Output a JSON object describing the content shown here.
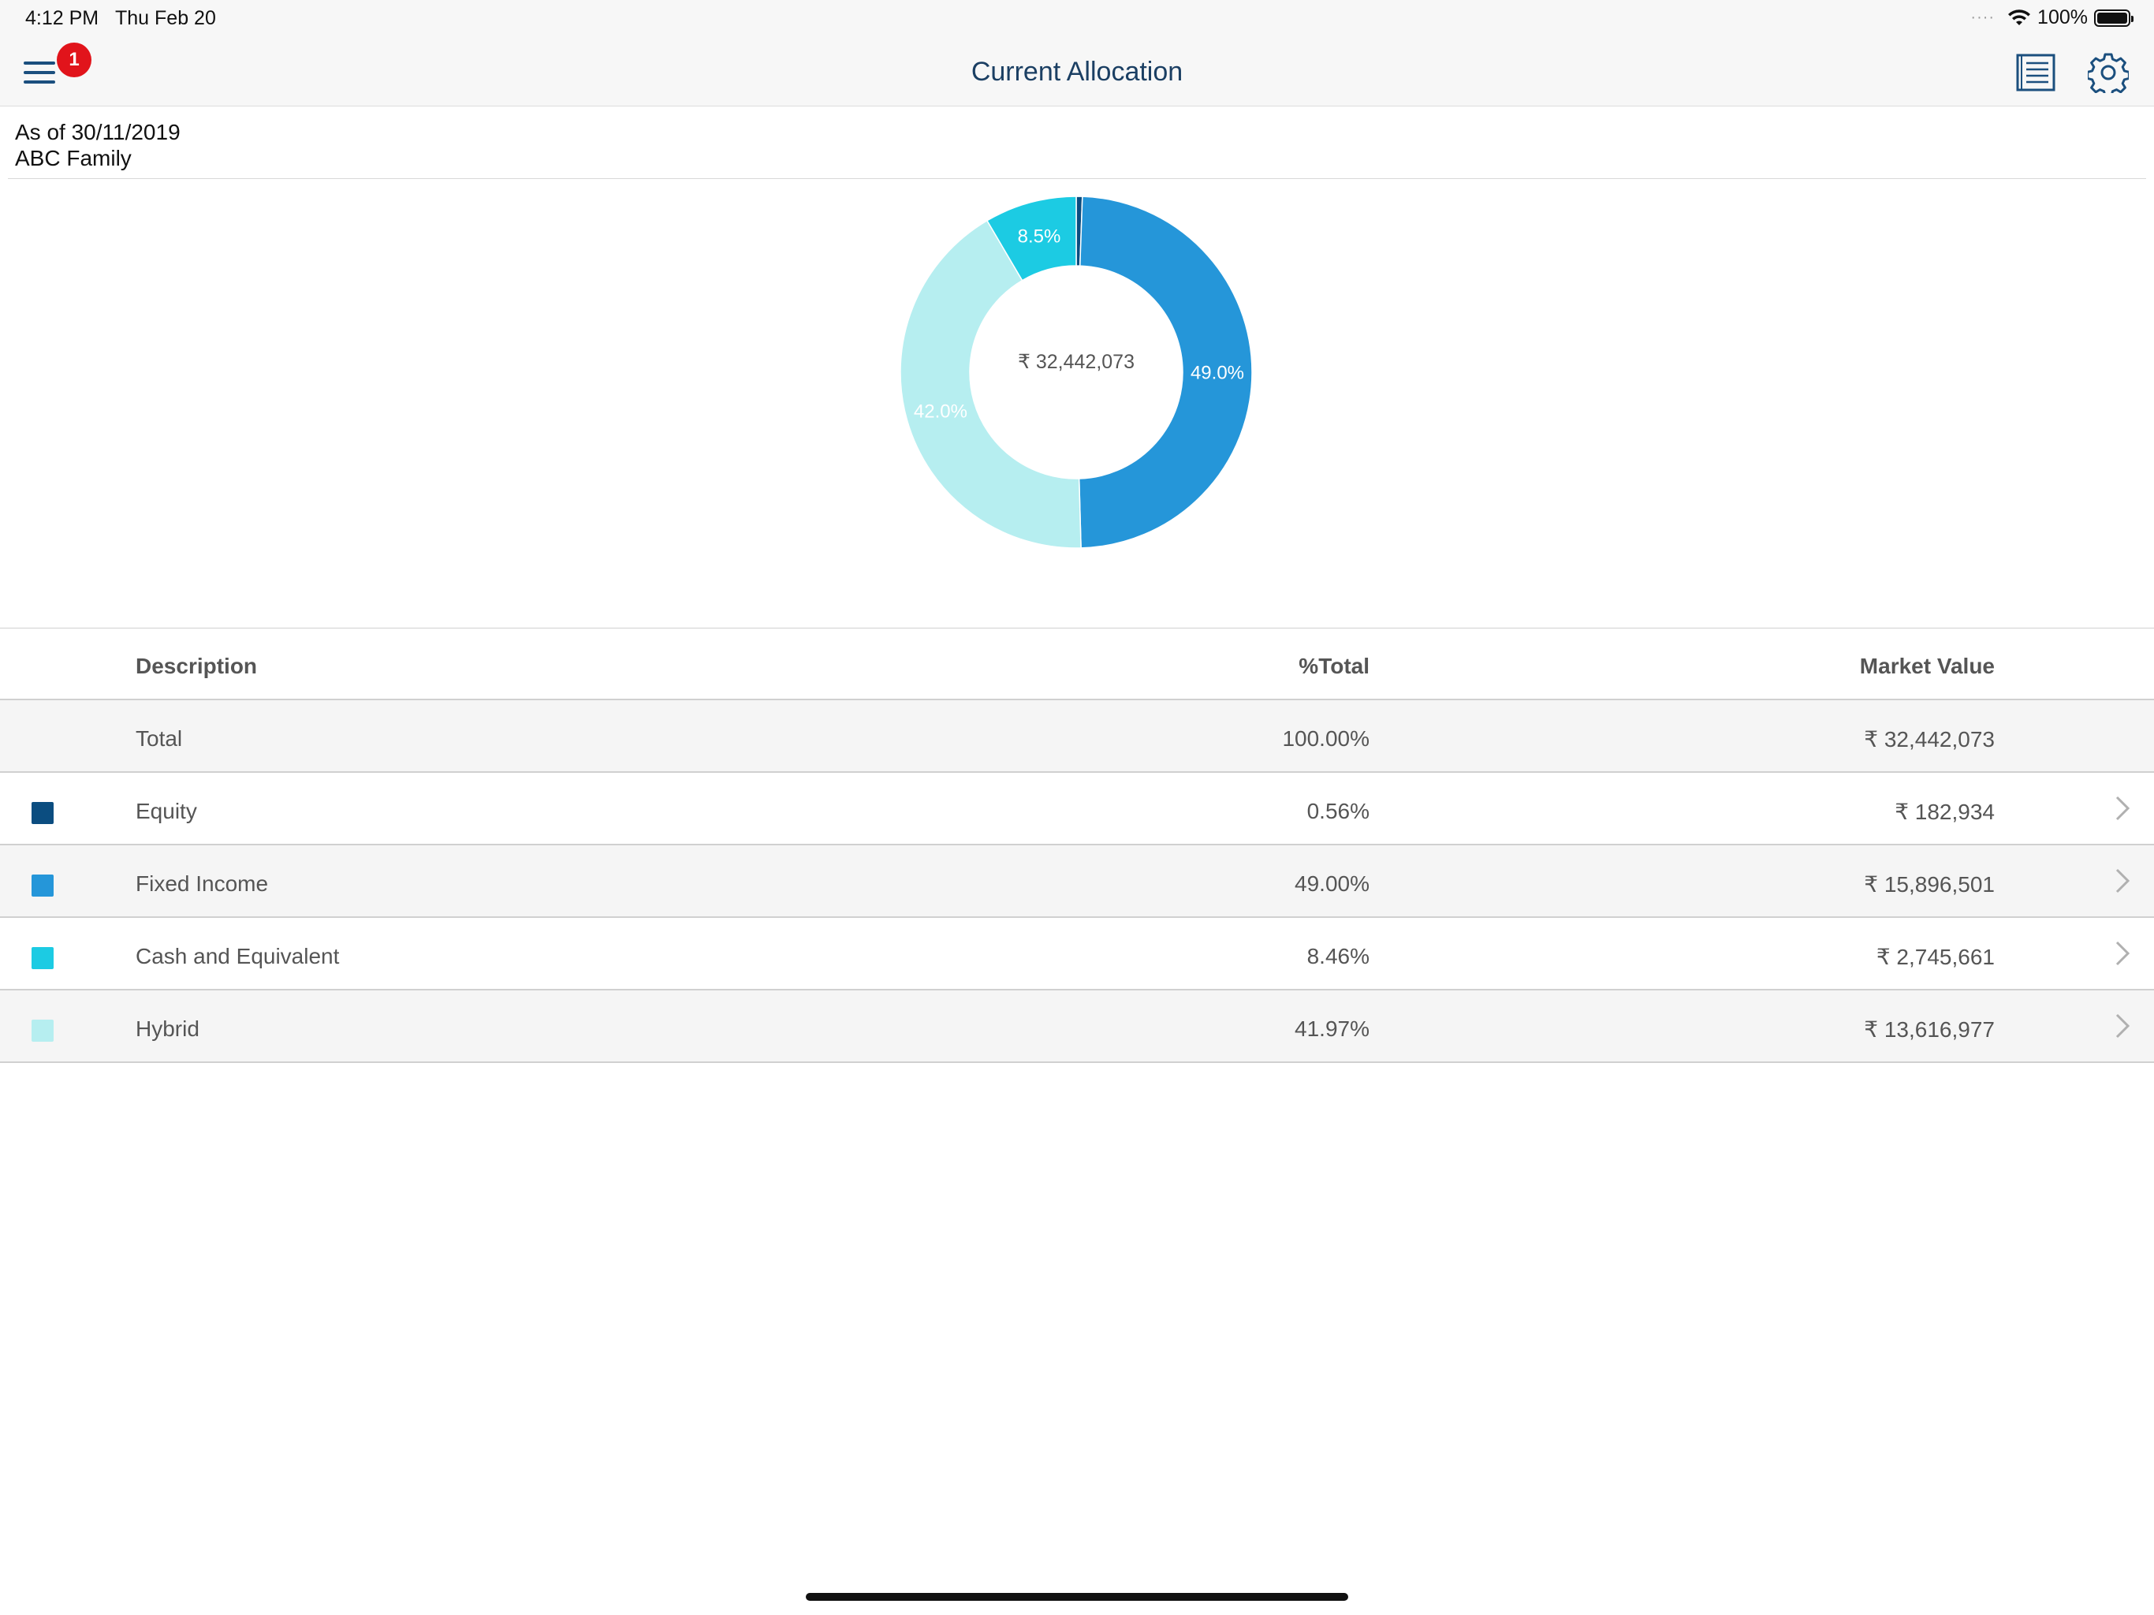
{
  "status_bar": {
    "time": "4:12 PM",
    "date": "Thu Feb 20",
    "battery_text": "100%",
    "signal_dots": "····"
  },
  "nav": {
    "title": "Current Allocation",
    "menu_badge": "1"
  },
  "header": {
    "as_of": "As of 30/11/2019",
    "family": "ABC Family"
  },
  "colors": {
    "equity": "#0b4d80",
    "fixed_income": "#2596d9",
    "cash": "#1ccbe3",
    "hybrid": "#b6eef0",
    "nav_text": "#1b3f63"
  },
  "chart_data": {
    "type": "pie",
    "style": "donut",
    "center_label": "₹ 32,442,073",
    "slices": [
      {
        "name": "Equity",
        "value": 0.56,
        "color": "#0b4d80",
        "label": ""
      },
      {
        "name": "Fixed Income",
        "value": 49.0,
        "color": "#2596d9",
        "label": "49.0%"
      },
      {
        "name": "Hybrid",
        "value": 41.97,
        "color": "#b6eef0",
        "label": "42.0%"
      },
      {
        "name": "Cash and Equivalent",
        "value": 8.46,
        "color": "#1ccbe3",
        "label": "8.5%"
      }
    ]
  },
  "table": {
    "headers": {
      "description": "Description",
      "pct_total": "%Total",
      "market_value": "Market Value"
    },
    "total": {
      "description": "Total",
      "pct_total": "100.00%",
      "market_value": "₹ 32,442,073"
    },
    "rows": [
      {
        "description": "Equity",
        "pct_total": "0.56%",
        "market_value": "₹ 182,934",
        "color": "#0b4d80"
      },
      {
        "description": "Fixed Income",
        "pct_total": "49.00%",
        "market_value": "₹ 15,896,501",
        "color": "#2596d9"
      },
      {
        "description": "Cash and Equivalent",
        "pct_total": "8.46%",
        "market_value": "₹ 2,745,661",
        "color": "#1ccbe3"
      },
      {
        "description": "Hybrid",
        "pct_total": "41.97%",
        "market_value": "₹ 13,616,977",
        "color": "#b6eef0"
      }
    ]
  }
}
